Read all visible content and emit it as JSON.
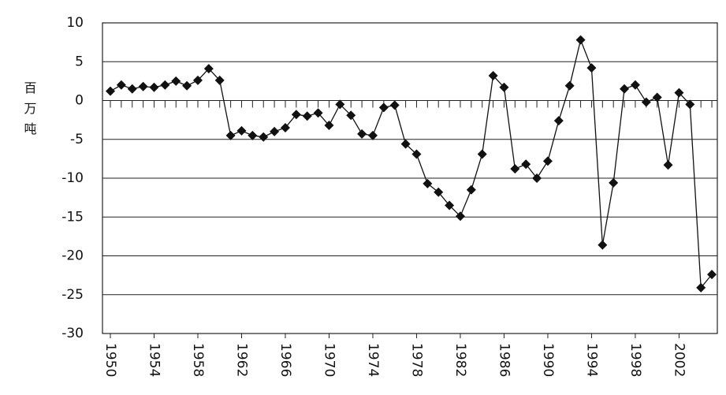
{
  "chart_data": {
    "type": "line",
    "y_label": "百万吨",
    "x": [
      1950,
      1951,
      1952,
      1953,
      1954,
      1955,
      1956,
      1957,
      1958,
      1959,
      1960,
      1961,
      1962,
      1963,
      1964,
      1965,
      1966,
      1967,
      1968,
      1969,
      1970,
      1971,
      1972,
      1973,
      1974,
      1975,
      1976,
      1977,
      1978,
      1979,
      1980,
      1981,
      1982,
      1983,
      1984,
      1985,
      1986,
      1987,
      1988,
      1989,
      1990,
      1991,
      1992,
      1993,
      1994,
      1995,
      1996,
      1997,
      1998,
      1999,
      2000,
      2001,
      2002,
      2003,
      2004,
      2005
    ],
    "series": [
      {
        "color": "#111111",
        "values": [
          1.2,
          2.0,
          1.5,
          1.8,
          1.7,
          2.0,
          2.5,
          1.9,
          2.6,
          4.1,
          2.6,
          -4.5,
          -3.9,
          -4.5,
          -4.7,
          -4.0,
          -3.5,
          -1.8,
          -2.0,
          -1.6,
          -3.2,
          -0.5,
          -1.9,
          -4.3,
          -4.5,
          -0.9,
          -0.6,
          -5.6,
          -6.9,
          -10.7,
          -11.8,
          -13.5,
          -14.9,
          -11.5,
          -6.9,
          3.2,
          1.7,
          -8.8,
          -8.2,
          -10.0,
          -7.8,
          -2.6,
          1.9,
          7.8,
          4.2,
          -18.6,
          -10.6,
          1.5,
          2.0,
          -0.2,
          0.4,
          -8.3,
          1.0,
          -0.5,
          -24.1,
          -22.4
        ]
      }
    ],
    "xlim": [
      1949.28,
      2005.5
    ],
    "xticks": [
      1950,
      1954,
      1958,
      1962,
      1966,
      1970,
      1974,
      1978,
      1982,
      1986,
      1990,
      1994,
      1998,
      2002
    ],
    "ylim": [
      -30,
      10
    ],
    "yticks": [
      -30,
      -25,
      -20,
      -15,
      -10,
      -5,
      0,
      5,
      10
    ],
    "grid": true
  }
}
